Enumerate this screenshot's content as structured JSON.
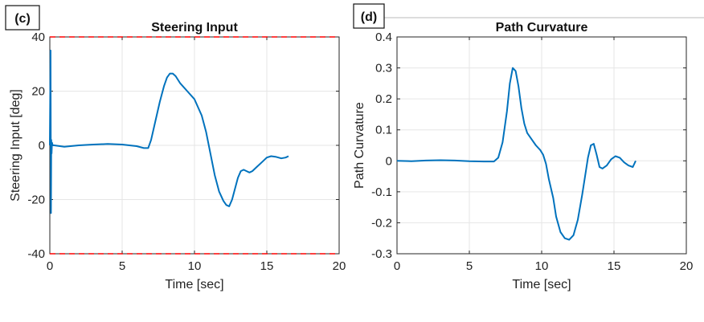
{
  "chart_data": [
    {
      "panel_label": "(c)",
      "type": "line",
      "title": "Steering Input",
      "xlabel": "Time [sec]",
      "ylabel": "Steering Input [deg]",
      "xlim": [
        0,
        20
      ],
      "ylim": [
        -40,
        40
      ],
      "xticks": [
        0,
        5,
        10,
        15,
        20
      ],
      "yticks": [
        -40,
        -20,
        0,
        20,
        40
      ],
      "grid": true,
      "line_color": "#0072BD",
      "limit_color": "#FF0000",
      "limits": [
        40,
        -40
      ],
      "series": [
        {
          "x": [
            0,
            0.05,
            0.08,
            0.1,
            0.12,
            0.15,
            0.2,
            0.3,
            1,
            2,
            3,
            4,
            5,
            6,
            6.5,
            6.8,
            7.0,
            7.3,
            7.6,
            7.9,
            8.1,
            8.3,
            8.5,
            8.7,
            9.0,
            9.5,
            10.0,
            10.5,
            10.8,
            11.1,
            11.4,
            11.7,
            12.0,
            12.2,
            12.4,
            12.6,
            12.8,
            13.0,
            13.2,
            13.4,
            13.6,
            13.8,
            14.0,
            14.3,
            14.7,
            15.0,
            15.3,
            15.6,
            16.0,
            16.3,
            16.5
          ],
          "y": [
            0,
            35,
            -25,
            2,
            -3,
            1,
            0,
            0,
            -0.5,
            0,
            0.3,
            0.5,
            0.3,
            -0.3,
            -1,
            -1,
            2,
            9,
            16,
            22,
            25,
            26.5,
            26.5,
            25.5,
            23,
            20,
            17,
            11,
            5,
            -3,
            -11,
            -17,
            -20.5,
            -22,
            -22.5,
            -20,
            -16,
            -12,
            -9.5,
            -9,
            -9.5,
            -10,
            -9.5,
            -8,
            -6,
            -4.5,
            -4,
            -4.2,
            -4.8,
            -4.5,
            -4
          ]
        }
      ]
    },
    {
      "panel_label": "(d)",
      "type": "line",
      "title": "Path Curvature",
      "xlabel": "Time [sec]",
      "ylabel": "Path Curvature",
      "xlim": [
        0,
        20
      ],
      "ylim": [
        -0.3,
        0.4
      ],
      "xticks": [
        0,
        5,
        10,
        15,
        20
      ],
      "yticks": [
        -0.3,
        -0.2,
        -0.1,
        0,
        0.1,
        0.2,
        0.3,
        0.4
      ],
      "grid": true,
      "line_color": "#0072BD",
      "series": [
        {
          "x": [
            0,
            1,
            2,
            3,
            4,
            5,
            6,
            6.7,
            7.0,
            7.3,
            7.6,
            7.8,
            8.0,
            8.2,
            8.4,
            8.6,
            8.8,
            9.0,
            9.3,
            9.6,
            9.9,
            10.1,
            10.3,
            10.5,
            10.8,
            11.0,
            11.3,
            11.6,
            11.9,
            12.2,
            12.5,
            12.8,
            13.0,
            13.2,
            13.4,
            13.6,
            13.8,
            14.0,
            14.2,
            14.5,
            14.8,
            15.1,
            15.4,
            15.7,
            16.0,
            16.3,
            16.5
          ],
          "y": [
            0,
            -0.001,
            0.001,
            0.002,
            0.001,
            -0.001,
            -0.002,
            -0.002,
            0.01,
            0.06,
            0.16,
            0.25,
            0.3,
            0.29,
            0.24,
            0.17,
            0.12,
            0.09,
            0.07,
            0.05,
            0.035,
            0.02,
            -0.01,
            -0.06,
            -0.12,
            -0.18,
            -0.23,
            -0.25,
            -0.255,
            -0.24,
            -0.19,
            -0.11,
            -0.05,
            0.01,
            0.05,
            0.055,
            0.02,
            -0.02,
            -0.025,
            -0.015,
            0.005,
            0.015,
            0.01,
            -0.005,
            -0.015,
            -0.02,
            0
          ]
        }
      ]
    }
  ]
}
